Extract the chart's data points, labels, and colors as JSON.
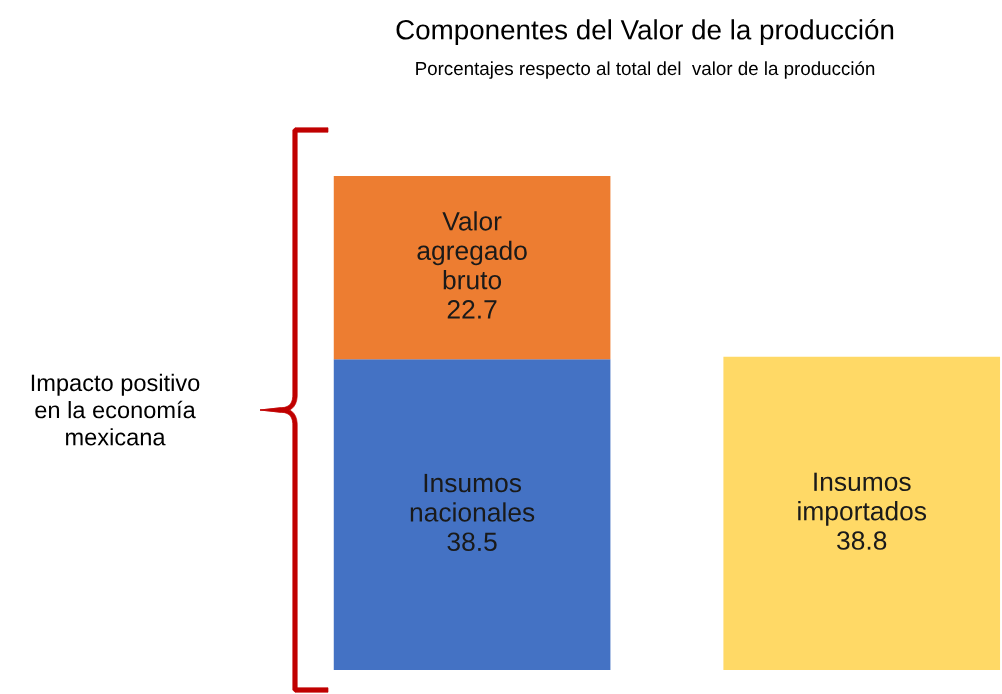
{
  "chart_data": {
    "type": "bar",
    "title": "Componentes del Valor de la producción",
    "subtitle": "Porcentajes respecto al total del  valor de la producción",
    "categories": [
      null,
      null
    ],
    "stacked": true,
    "data_labels": true,
    "legend": false,
    "series": [
      {
        "name": "Insumos nacionales",
        "color": "#4472c4",
        "values": [
          38.5,
          null
        ]
      },
      {
        "name": "Valor agregado bruto",
        "color": "#ed7d31",
        "values": [
          22.7,
          null
        ]
      },
      {
        "name": "Insumos importados",
        "color": "#ffd966",
        "values": [
          null,
          38.8
        ]
      }
    ],
    "annotations": [
      "Impacto positivo en la economía mexicana"
    ]
  }
}
